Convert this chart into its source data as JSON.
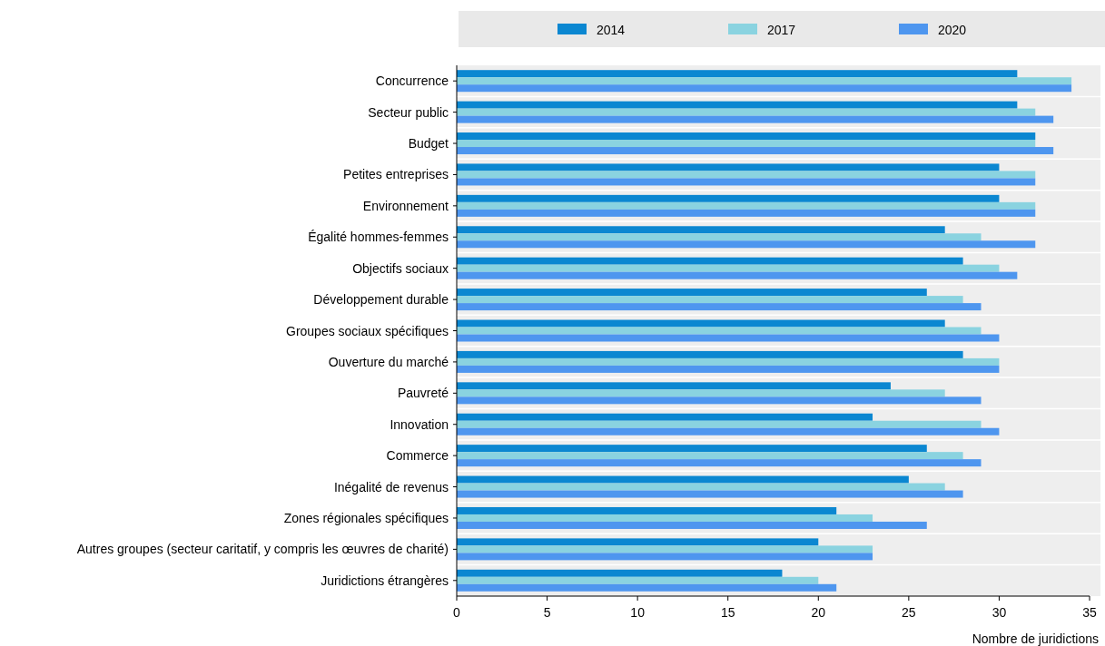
{
  "chart_data": {
    "type": "bar",
    "orientation": "horizontal",
    "xlabel": "Nombre de juridictions",
    "categories": [
      "Concurrence",
      "Secteur public",
      "Budget",
      "Petites entreprises",
      "Environnement",
      "Égalité hommes-femmes",
      "Objectifs sociaux",
      "Développement durable",
      "Groupes sociaux spécifiques",
      "Ouverture du marché",
      "Pauvreté",
      "Innovation",
      "Commerce",
      "Inégalité de revenus",
      "Zones régionales spécifiques",
      "Autres groupes (secteur caritatif, y compris les œuvres de charité)",
      "Juridictions étrangères"
    ],
    "series": [
      {
        "name": "2014",
        "color": "#0b87d1",
        "values": [
          31,
          31,
          32,
          30,
          30,
          27,
          28,
          26,
          27,
          28,
          24,
          23,
          26,
          25,
          21,
          20,
          18
        ]
      },
      {
        "name": "2017",
        "color": "#8ad3e0",
        "values": [
          34,
          32,
          32,
          32,
          32,
          29,
          30,
          28,
          29,
          30,
          27,
          29,
          28,
          27,
          23,
          23,
          20
        ]
      },
      {
        "name": "2020",
        "color": "#4e96ef",
        "values": [
          34,
          33,
          33,
          32,
          32,
          32,
          31,
          29,
          30,
          30,
          29,
          30,
          29,
          28,
          26,
          23,
          21
        ]
      }
    ],
    "xlim": [
      0,
      35
    ],
    "xticks": [
      0,
      5,
      10,
      15,
      20,
      25,
      30,
      35
    ],
    "grid": false,
    "legend": "top"
  }
}
